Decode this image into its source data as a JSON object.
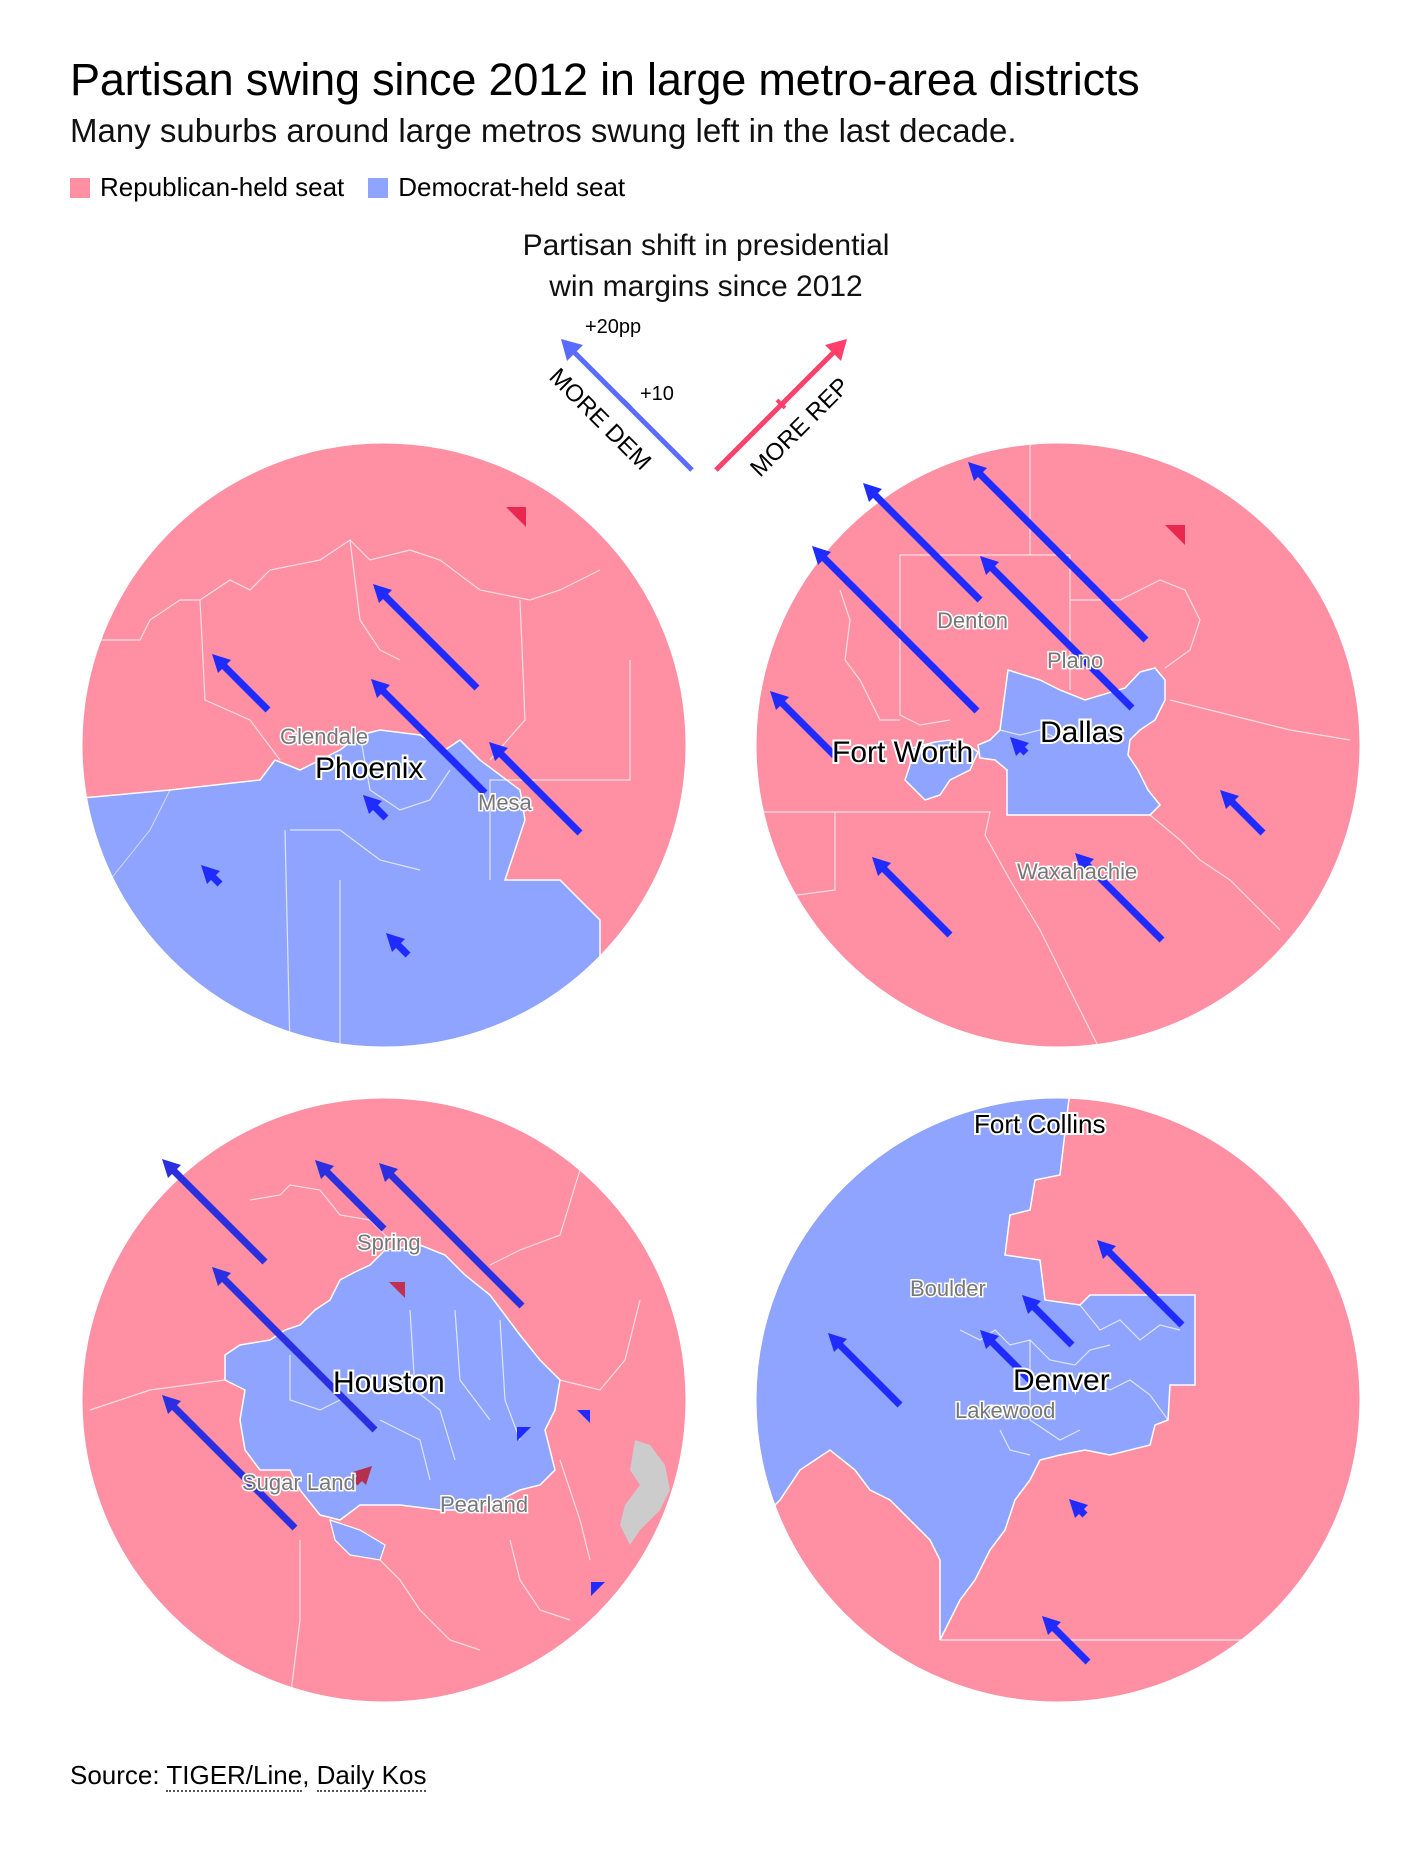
{
  "header": {
    "title": "Partisan swing since 2012 in large metro-area districts",
    "subtitle": "Many suburbs around large metros swung left in the last decade."
  },
  "legend": {
    "items": [
      {
        "label": "Republican-held seat",
        "color": "#ff8fa3"
      },
      {
        "label": "Democrat-held seat",
        "color": "#8fa4ff"
      }
    ]
  },
  "key": {
    "title_line1": "Partisan shift in presidential",
    "title_line2": "win margins since 2012",
    "tick_20": "+20pp",
    "tick_10": "+10",
    "more_dem": "MORE DEM",
    "more_rep": "MORE REP",
    "dem_color": "#5a6cff",
    "rep_color": "#ff3f6c"
  },
  "colors": {
    "rep_fill": "#ff8fa3",
    "dem_fill": "#8fa4ff",
    "dem_arrow": "#1f2bff",
    "rep_arrow": "#e8284f",
    "water": "#cccccc",
    "boundary": "#ffffff"
  },
  "maps": {
    "phoenix": {
      "main_city": "Phoenix",
      "cities": [
        "Glendale",
        "Mesa"
      ]
    },
    "dallas": {
      "main_city_1": "Fort Worth",
      "main_city_2": "Dallas",
      "cities": [
        "Denton",
        "Plano",
        "Waxahachie"
      ]
    },
    "houston": {
      "main_city": "Houston",
      "cities": [
        "Spring",
        "Sugar Land",
        "Pearland"
      ]
    },
    "denver": {
      "main_city": "Denver",
      "top_city": "Fort Collins",
      "cities": [
        "Boulder",
        "Lakewood"
      ]
    }
  },
  "source": {
    "prefix": "Source: ",
    "link1": "TIGER/Line",
    "separator": ", ",
    "link2": "Daily Kos"
  }
}
